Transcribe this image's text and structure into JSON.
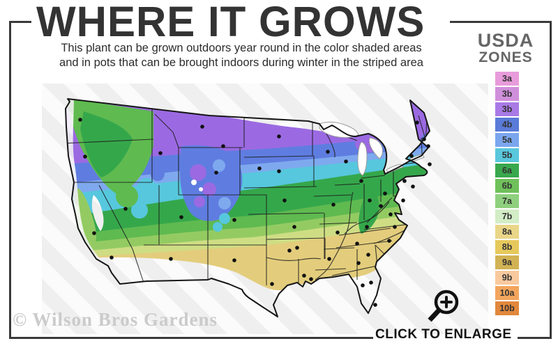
{
  "header": {
    "title": "WHERE IT GROWS",
    "subtitle_line1": "This plant can be grown outdoors year round in the color shaded areas",
    "subtitle_line2": "and in pots that can be brought indoors during winter in the striped area"
  },
  "legend": {
    "title_line1": "USDA",
    "title_line2": "ZONES",
    "zones": [
      {
        "label": "3a",
        "color": "#e89bdb"
      },
      {
        "label": "3b",
        "color": "#d08fdb"
      },
      {
        "label": "3b",
        "color": "#a97ae6"
      },
      {
        "label": "4b",
        "color": "#5a7bd9"
      },
      {
        "label": "5a",
        "color": "#7ba6ee"
      },
      {
        "label": "5b",
        "color": "#59c7dc"
      },
      {
        "label": "6a",
        "color": "#39a84d"
      },
      {
        "label": "6b",
        "color": "#6fc05a"
      },
      {
        "label": "7a",
        "color": "#8fd07f"
      },
      {
        "label": "7b",
        "color": "#d3edc6"
      },
      {
        "label": "8a",
        "color": "#ead688"
      },
      {
        "label": "8b",
        "color": "#e6c95c"
      },
      {
        "label": "9a",
        "color": "#d1b254"
      },
      {
        "label": "9b",
        "color": "#f9c99e"
      },
      {
        "label": "10a",
        "color": "#f2a55c"
      },
      {
        "label": "10b",
        "color": "#e1883c"
      }
    ]
  },
  "footer": {
    "watermark": "© Wilson Bros Gardens",
    "enlarge_label": "CLICK TO ENLARGE"
  },
  "map": {
    "palette": {
      "purple": "#9b6ae2",
      "blueviolet": "#5f7de0",
      "cornflower": "#7fa9ee",
      "cyan": "#57c7dd",
      "green_dark": "#35a74b",
      "green_mid": "#5fba50",
      "green_light": "#93cb62",
      "pale_yellow": "#cedd84",
      "khaki": "#e3cd7c",
      "stripe_light": "#efefef",
      "stripe_white": "#fbfbfb",
      "border": "#1b1b1b"
    },
    "dots": [
      [
        55,
        52
      ],
      [
        62,
        105
      ],
      [
        75,
        215
      ],
      [
        100,
        250
      ],
      [
        120,
        180
      ],
      [
        170,
        100
      ],
      [
        200,
        192
      ],
      [
        185,
        252
      ],
      [
        230,
        62
      ],
      [
        250,
        128
      ],
      [
        276,
        196
      ],
      [
        276,
        254
      ],
      [
        340,
        76
      ],
      [
        340,
        126
      ],
      [
        348,
        168
      ],
      [
        362,
        206
      ],
      [
        366,
        236
      ],
      [
        330,
        288
      ],
      [
        355,
        240
      ],
      [
        410,
        98
      ],
      [
        418,
        174
      ],
      [
        424,
        214
      ],
      [
        412,
        252
      ],
      [
        376,
        276
      ],
      [
        386,
        281
      ],
      [
        436,
        112
      ],
      [
        470,
        168
      ],
      [
        466,
        206
      ],
      [
        452,
        230
      ],
      [
        454,
        258
      ],
      [
        458,
        140
      ],
      [
        492,
        158
      ],
      [
        468,
        246
      ],
      [
        460,
        290
      ],
      [
        472,
        286
      ],
      [
        478,
        318
      ],
      [
        498,
        226
      ],
      [
        506,
        206
      ],
      [
        500,
        188
      ],
      [
        486,
        176
      ],
      [
        520,
        140
      ],
      [
        530,
        104
      ],
      [
        538,
        56
      ],
      [
        548,
        80
      ],
      [
        554,
        90
      ],
      [
        556,
        116
      ],
      [
        532,
        148
      ],
      [
        518,
        168
      ],
      [
        312,
        122
      ],
      [
        260,
        90
      ]
    ]
  }
}
